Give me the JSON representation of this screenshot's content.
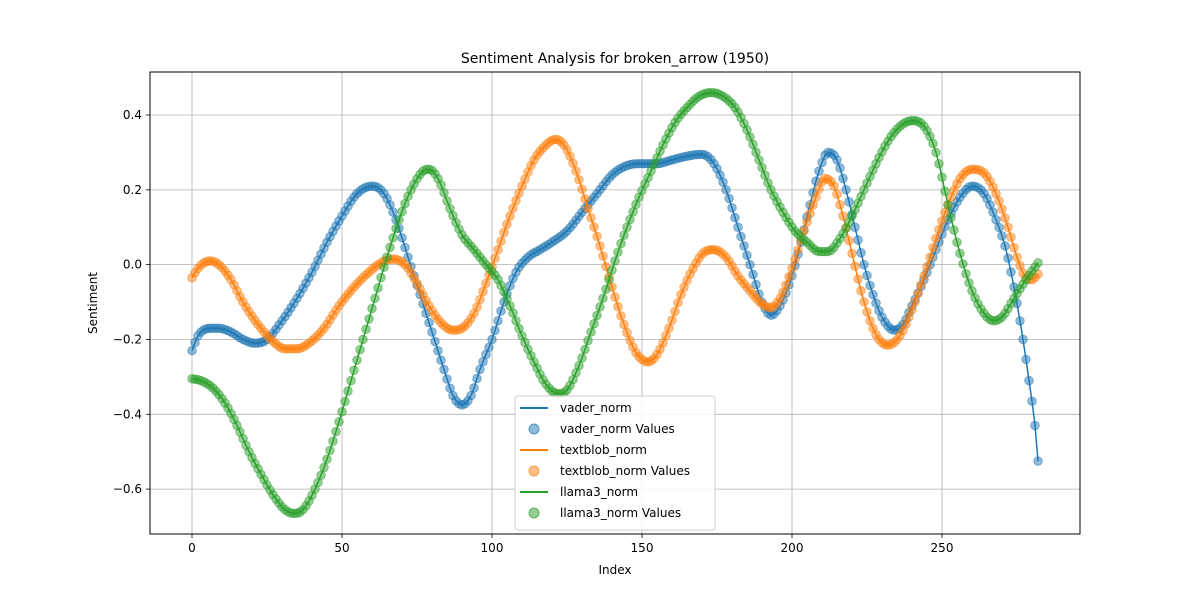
{
  "chart_data": {
    "type": "line",
    "title": "Sentiment Analysis for broken_arrow (1950)",
    "xlabel": "Index",
    "ylabel": "Sentiment",
    "xlim": [
      -14,
      296
    ],
    "ylim": [
      -0.72,
      0.515
    ],
    "xticks": [
      0,
      50,
      100,
      150,
      200,
      250
    ],
    "yticks": [
      -0.6,
      -0.4,
      -0.2,
      0.0,
      0.2,
      0.4
    ],
    "ytick_labels": [
      "−0.6",
      "−0.4",
      "−0.2",
      "0.0",
      "0.2",
      "0.4"
    ],
    "grid": true,
    "legend_position": "lower-center",
    "n_points": 283,
    "series": [
      {
        "name": "vader_norm",
        "scatter_name": "vader_norm Values",
        "color": "#1f77b4",
        "keypoints": [
          [
            0,
            -0.23
          ],
          [
            2,
            -0.19
          ],
          [
            6,
            -0.17
          ],
          [
            9,
            -0.17
          ],
          [
            13,
            -0.18
          ],
          [
            17,
            -0.2
          ],
          [
            21,
            -0.21
          ],
          [
            25,
            -0.2
          ],
          [
            30,
            -0.15
          ],
          [
            35,
            -0.09
          ],
          [
            40,
            -0.02
          ],
          [
            45,
            0.06
          ],
          [
            50,
            0.13
          ],
          [
            55,
            0.19
          ],
          [
            60,
            0.21
          ],
          [
            64,
            0.19
          ],
          [
            68,
            0.12
          ],
          [
            72,
            0.02
          ],
          [
            76,
            -0.08
          ],
          [
            80,
            -0.18
          ],
          [
            84,
            -0.28
          ],
          [
            87,
            -0.35
          ],
          [
            90,
            -0.375
          ],
          [
            93,
            -0.35
          ],
          [
            96,
            -0.28
          ],
          [
            100,
            -0.2
          ],
          [
            104,
            -0.1
          ],
          [
            108,
            -0.02
          ],
          [
            112,
            0.02
          ],
          [
            116,
            0.04
          ],
          [
            120,
            0.06
          ],
          [
            125,
            0.09
          ],
          [
            130,
            0.14
          ],
          [
            135,
            0.19
          ],
          [
            140,
            0.24
          ],
          [
            145,
            0.265
          ],
          [
            150,
            0.27
          ],
          [
            155,
            0.27
          ],
          [
            160,
            0.28
          ],
          [
            165,
            0.29
          ],
          [
            170,
            0.295
          ],
          [
            174,
            0.27
          ],
          [
            178,
            0.2
          ],
          [
            182,
            0.1
          ],
          [
            186,
            0.0
          ],
          [
            190,
            -0.1
          ],
          [
            193,
            -0.135
          ],
          [
            196,
            -0.11
          ],
          [
            200,
            -0.03
          ],
          [
            203,
            0.06
          ],
          [
            206,
            0.16
          ],
          [
            209,
            0.25
          ],
          [
            212,
            0.3
          ],
          [
            215,
            0.28
          ],
          [
            218,
            0.2
          ],
          [
            221,
            0.1
          ],
          [
            224,
            0.0
          ],
          [
            227,
            -0.08
          ],
          [
            230,
            -0.14
          ],
          [
            234,
            -0.175
          ],
          [
            237,
            -0.16
          ],
          [
            240,
            -0.11
          ],
          [
            244,
            -0.04
          ],
          [
            248,
            0.04
          ],
          [
            252,
            0.12
          ],
          [
            256,
            0.18
          ],
          [
            260,
            0.21
          ],
          [
            264,
            0.19
          ],
          [
            268,
            0.12
          ],
          [
            271,
            0.05
          ],
          [
            274,
            -0.06
          ],
          [
            277,
            -0.2
          ],
          [
            279,
            -0.31
          ],
          [
            281,
            -0.43
          ],
          [
            282,
            -0.525
          ]
        ]
      },
      {
        "name": "textblob_norm",
        "scatter_name": "textblob_norm Values",
        "color": "#ff7f0e",
        "keypoints": [
          [
            0,
            -0.035
          ],
          [
            2,
            -0.01
          ],
          [
            4,
            0.005
          ],
          [
            6,
            0.01
          ],
          [
            9,
            0.0
          ],
          [
            13,
            -0.04
          ],
          [
            17,
            -0.1
          ],
          [
            22,
            -0.16
          ],
          [
            27,
            -0.205
          ],
          [
            31,
            -0.225
          ],
          [
            35,
            -0.225
          ],
          [
            39,
            -0.21
          ],
          [
            44,
            -0.17
          ],
          [
            49,
            -0.11
          ],
          [
            54,
            -0.06
          ],
          [
            59,
            -0.02
          ],
          [
            63,
            0.005
          ],
          [
            67,
            0.015
          ],
          [
            71,
            0.0
          ],
          [
            75,
            -0.05
          ],
          [
            79,
            -0.11
          ],
          [
            83,
            -0.155
          ],
          [
            87,
            -0.175
          ],
          [
            90,
            -0.17
          ],
          [
            94,
            -0.13
          ],
          [
            98,
            -0.05
          ],
          [
            102,
            0.04
          ],
          [
            106,
            0.13
          ],
          [
            110,
            0.21
          ],
          [
            114,
            0.28
          ],
          [
            118,
            0.32
          ],
          [
            121,
            0.335
          ],
          [
            124,
            0.32
          ],
          [
            128,
            0.25
          ],
          [
            132,
            0.15
          ],
          [
            136,
            0.05
          ],
          [
            140,
            -0.06
          ],
          [
            144,
            -0.16
          ],
          [
            148,
            -0.235
          ],
          [
            152,
            -0.26
          ],
          [
            155,
            -0.24
          ],
          [
            159,
            -0.17
          ],
          [
            163,
            -0.08
          ],
          [
            167,
            -0.01
          ],
          [
            171,
            0.035
          ],
          [
            174,
            0.04
          ],
          [
            178,
            0.02
          ],
          [
            182,
            -0.03
          ],
          [
            186,
            -0.07
          ],
          [
            190,
            -0.105
          ],
          [
            193,
            -0.115
          ],
          [
            196,
            -0.09
          ],
          [
            200,
            -0.01
          ],
          [
            204,
            0.09
          ],
          [
            208,
            0.18
          ],
          [
            211,
            0.23
          ],
          [
            214,
            0.21
          ],
          [
            217,
            0.13
          ],
          [
            220,
            0.03
          ],
          [
            223,
            -0.07
          ],
          [
            226,
            -0.15
          ],
          [
            229,
            -0.2
          ],
          [
            232,
            -0.215
          ],
          [
            236,
            -0.19
          ],
          [
            240,
            -0.12
          ],
          [
            244,
            -0.03
          ],
          [
            248,
            0.07
          ],
          [
            252,
            0.16
          ],
          [
            256,
            0.23
          ],
          [
            260,
            0.255
          ],
          [
            264,
            0.245
          ],
          [
            268,
            0.19
          ],
          [
            272,
            0.1
          ],
          [
            275,
            0.02
          ],
          [
            278,
            -0.035
          ],
          [
            280,
            -0.04
          ],
          [
            282,
            -0.025
          ]
        ]
      },
      {
        "name": "llama3_norm",
        "scatter_name": "llama3_norm Values",
        "color": "#2ca02c",
        "keypoints": [
          [
            0,
            -0.305
          ],
          [
            3,
            -0.31
          ],
          [
            7,
            -0.33
          ],
          [
            11,
            -0.37
          ],
          [
            15,
            -0.43
          ],
          [
            19,
            -0.5
          ],
          [
            23,
            -0.56
          ],
          [
            27,
            -0.615
          ],
          [
            31,
            -0.655
          ],
          [
            34,
            -0.665
          ],
          [
            37,
            -0.655
          ],
          [
            41,
            -0.6
          ],
          [
            45,
            -0.52
          ],
          [
            49,
            -0.42
          ],
          [
            53,
            -0.31
          ],
          [
            57,
            -0.2
          ],
          [
            61,
            -0.09
          ],
          [
            65,
            0.02
          ],
          [
            69,
            0.12
          ],
          [
            73,
            0.2
          ],
          [
            77,
            0.25
          ],
          [
            79,
            0.255
          ],
          [
            82,
            0.23
          ],
          [
            86,
            0.15
          ],
          [
            90,
            0.08
          ],
          [
            94,
            0.04
          ],
          [
            98,
            0.0
          ],
          [
            102,
            -0.04
          ],
          [
            106,
            -0.11
          ],
          [
            110,
            -0.19
          ],
          [
            114,
            -0.26
          ],
          [
            118,
            -0.32
          ],
          [
            122,
            -0.345
          ],
          [
            125,
            -0.335
          ],
          [
            129,
            -0.27
          ],
          [
            133,
            -0.18
          ],
          [
            137,
            -0.09
          ],
          [
            141,
            0.01
          ],
          [
            145,
            0.1
          ],
          [
            149,
            0.18
          ],
          [
            153,
            0.25
          ],
          [
            157,
            0.32
          ],
          [
            161,
            0.38
          ],
          [
            165,
            0.42
          ],
          [
            169,
            0.45
          ],
          [
            173,
            0.46
          ],
          [
            177,
            0.45
          ],
          [
            181,
            0.42
          ],
          [
            185,
            0.36
          ],
          [
            189,
            0.28
          ],
          [
            193,
            0.2
          ],
          [
            197,
            0.14
          ],
          [
            201,
            0.09
          ],
          [
            205,
            0.06
          ],
          [
            209,
            0.035
          ],
          [
            212,
            0.035
          ],
          [
            216,
            0.07
          ],
          [
            220,
            0.13
          ],
          [
            224,
            0.2
          ],
          [
            228,
            0.27
          ],
          [
            232,
            0.33
          ],
          [
            236,
            0.37
          ],
          [
            240,
            0.385
          ],
          [
            244,
            0.37
          ],
          [
            248,
            0.3
          ],
          [
            252,
            0.16
          ],
          [
            256,
            0.03
          ],
          [
            260,
            -0.07
          ],
          [
            264,
            -0.13
          ],
          [
            267,
            -0.15
          ],
          [
            270,
            -0.14
          ],
          [
            274,
            -0.09
          ],
          [
            278,
            -0.04
          ],
          [
            282,
            0.005
          ]
        ]
      }
    ]
  }
}
